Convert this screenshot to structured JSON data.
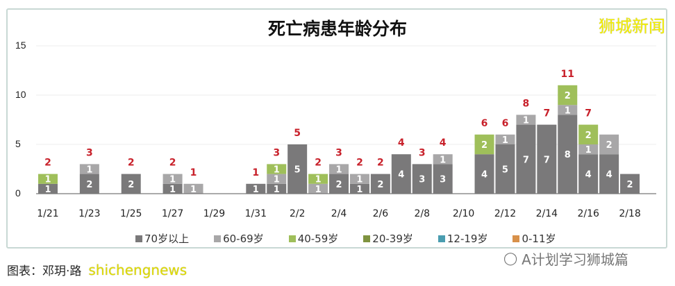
{
  "chart_data": {
    "type": "bar",
    "stacked": true,
    "title": "死亡病患年龄分布",
    "categories": [
      "1/21",
      "1/22",
      "1/23",
      "1/24",
      "1/25",
      "1/26",
      "1/27",
      "1/28",
      "1/29",
      "1/30",
      "1/31",
      "2/1",
      "2/2",
      "2/3",
      "2/4",
      "2/5",
      "2/6",
      "2/7",
      "2/8",
      "2/9",
      "2/10",
      "2/11",
      "2/12",
      "2/13",
      "2/14",
      "2/15",
      "2/16",
      "2/17",
      "2/18"
    ],
    "x_tick_labels": [
      "1/21",
      "1/23",
      "1/25",
      "1/27",
      "1/29",
      "1/31",
      "2/2",
      "2/4",
      "2/6",
      "2/8",
      "2/10",
      "2/12",
      "2/14",
      "2/16",
      "2/18"
    ],
    "series": [
      {
        "name": "70岁以上",
        "color": "#7a797a",
        "values": [
          1,
          0,
          2,
          0,
          2,
          0,
          1,
          0,
          0,
          0,
          1,
          1,
          5,
          0,
          2,
          1,
          2,
          4,
          3,
          3,
          0,
          4,
          5,
          7,
          7,
          8,
          4,
          4,
          2
        ]
      },
      {
        "name": "60-69岁",
        "color": "#a8a7a8",
        "values": [
          0,
          0,
          1,
          0,
          0,
          0,
          1,
          1,
          0,
          0,
          0,
          1,
          0,
          1,
          1,
          1,
          0,
          0,
          0,
          1,
          0,
          0,
          1,
          1,
          0,
          1,
          1,
          2,
          0
        ]
      },
      {
        "name": "40-59岁",
        "color": "#9fbf5a",
        "values": [
          1,
          0,
          0,
          0,
          0,
          0,
          0,
          0,
          0,
          0,
          0,
          1,
          0,
          1,
          0,
          0,
          0,
          0,
          0,
          0,
          0,
          2,
          0,
          0,
          0,
          2,
          2,
          0,
          0
        ]
      },
      {
        "name": "20-39岁",
        "color": "#7f9340",
        "values": [
          0,
          0,
          0,
          0,
          0,
          0,
          0,
          0,
          0,
          0,
          0,
          0,
          0,
          0,
          0,
          0,
          0,
          0,
          0,
          0,
          0,
          0,
          0,
          0,
          0,
          0,
          0,
          0,
          0
        ]
      },
      {
        "name": "12-19岁",
        "color": "#4a9db0",
        "values": [
          0,
          0,
          0,
          0,
          0,
          0,
          0,
          0,
          0,
          0,
          0,
          0,
          0,
          0,
          0,
          0,
          0,
          0,
          0,
          0,
          0,
          0,
          0,
          0,
          0,
          0,
          0,
          0,
          0
        ]
      },
      {
        "name": "0-11岁",
        "color": "#d8914a",
        "values": [
          0,
          0,
          0,
          0,
          0,
          0,
          0,
          0,
          0,
          0,
          0,
          0,
          0,
          0,
          0,
          0,
          0,
          0,
          0,
          0,
          0,
          0,
          0,
          0,
          0,
          0,
          0,
          0,
          0
        ]
      }
    ],
    "totals": [
      2,
      null,
      3,
      null,
      2,
      null,
      2,
      1,
      null,
      null,
      1,
      3,
      5,
      2,
      3,
      2,
      2,
      4,
      3,
      4,
      null,
      6,
      6,
      8,
      7,
      11,
      7,
      null,
      null
    ],
    "total_label_color": "#c8202a",
    "ylim": [
      0,
      15
    ],
    "y_ticks": [
      "0",
      "5",
      "10",
      "15"
    ],
    "grid": true,
    "legend": "bottom"
  },
  "watermark_top": "狮城新闻",
  "credit": "图表：邓玥·路",
  "credit_watermark": "shichengnews",
  "wechat_account": "A计划学习狮城篇"
}
